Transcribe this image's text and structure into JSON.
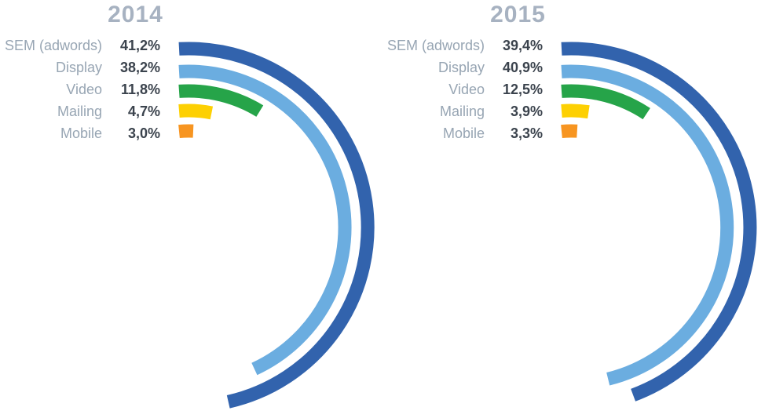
{
  "page": {
    "background": "#ffffff",
    "text_colors": {
      "title": "#a7b2c1",
      "label": "#97a5b3",
      "value": "#3b434d"
    }
  },
  "chart_data": [
    {
      "type": "radial-bar",
      "title": "2014",
      "categories": [
        "SEM (adwords)",
        "Display",
        "Video",
        "Mailing",
        "Mobile"
      ],
      "values": [
        41.2,
        38.2,
        11.8,
        4.7,
        3.0
      ],
      "value_labels": [
        "41,2%",
        "38,2%",
        "11,8%",
        "4,7%",
        "3,0%"
      ],
      "series_colors": [
        "#3263ad",
        "#6bade0",
        "#26a449",
        "#fdd003",
        "#f79521"
      ],
      "unit": "%",
      "legend_position": "left",
      "arc_start": "top",
      "arc_direction": "clockwise"
    },
    {
      "type": "radial-bar",
      "title": "2015",
      "categories": [
        "SEM (adwords)",
        "Display",
        "Video",
        "Mailing",
        "Mobile"
      ],
      "values": [
        39.4,
        40.9,
        12.5,
        3.9,
        3.3
      ],
      "value_labels": [
        "39,4%",
        "40,9%",
        "12,5%",
        "3,9%",
        "3,3%"
      ],
      "series_colors": [
        "#3263ad",
        "#6bade0",
        "#26a449",
        "#fdd003",
        "#f79521"
      ],
      "unit": "%",
      "legend_position": "left",
      "arc_start": "top",
      "arc_direction": "clockwise"
    }
  ]
}
